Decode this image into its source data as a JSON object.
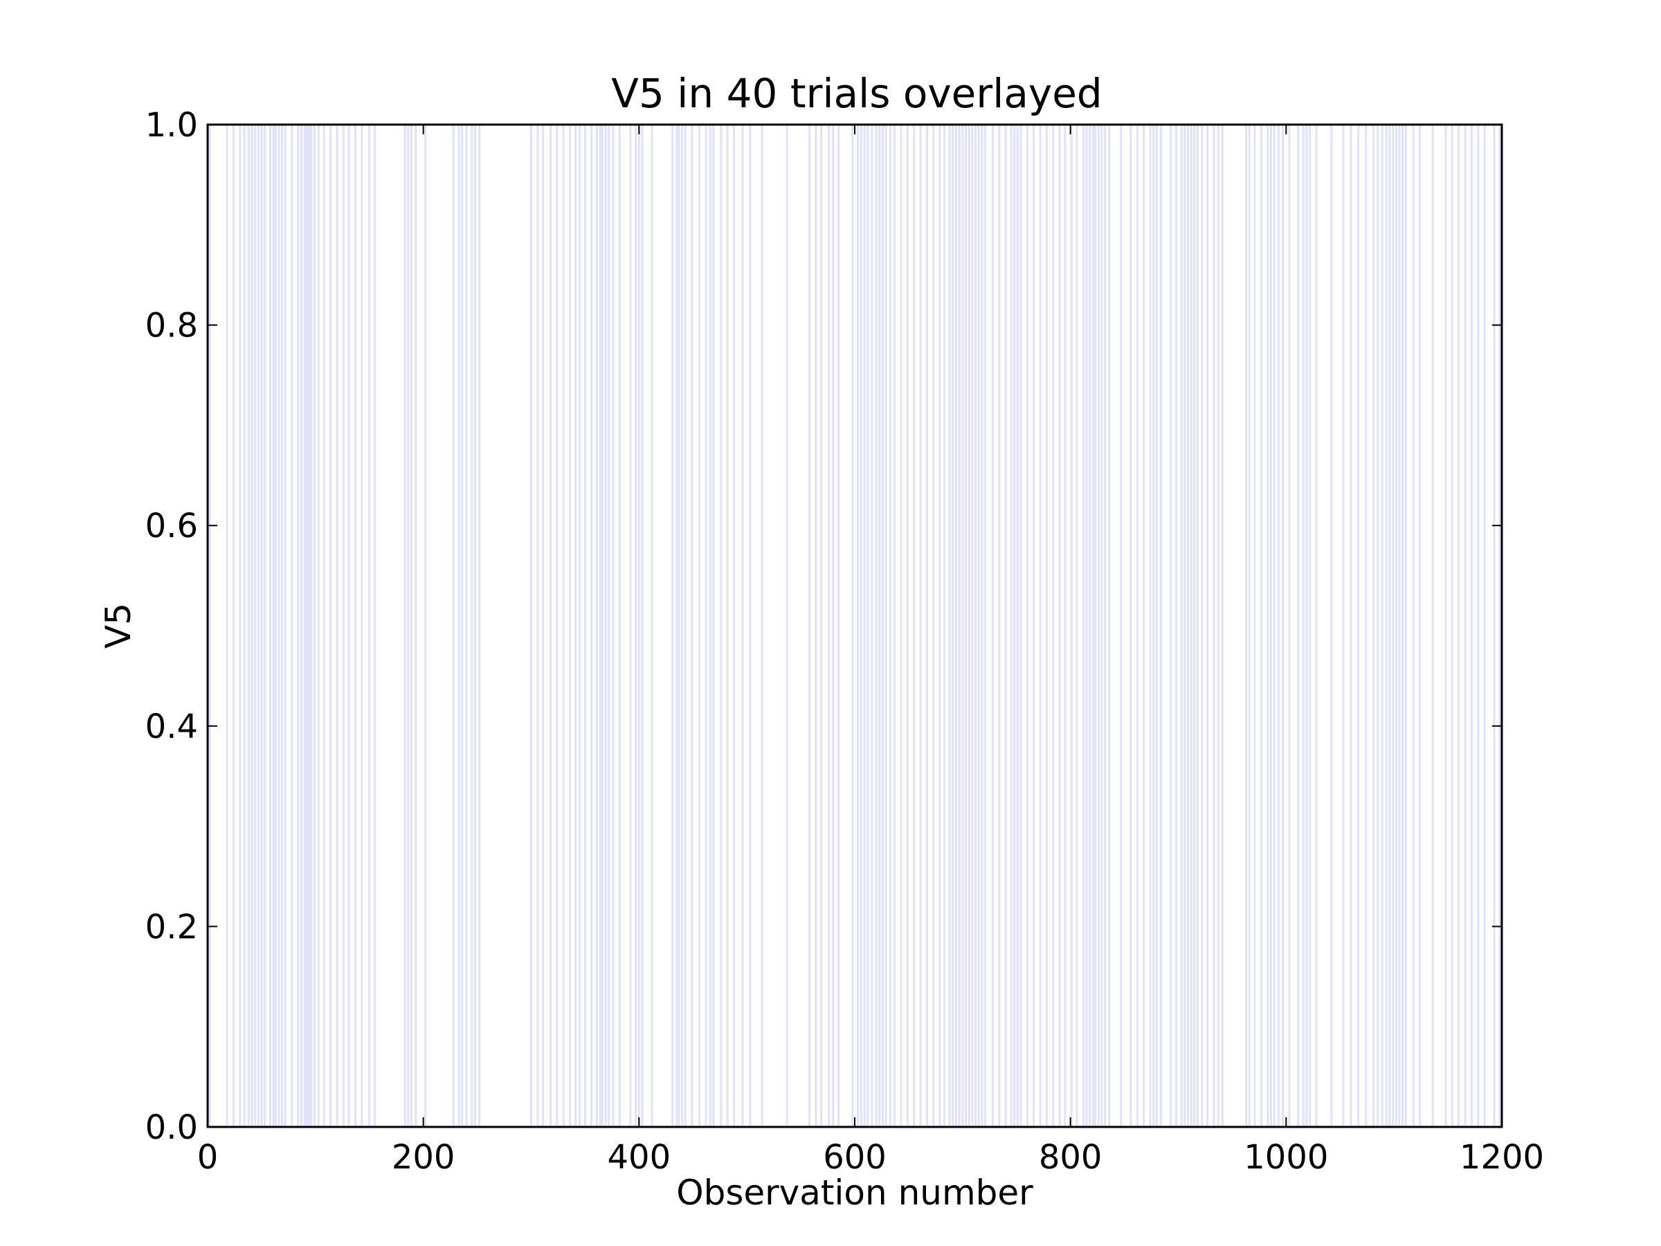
{
  "chart_data": {
    "type": "line",
    "title": "V5 in 40 trials overlayed",
    "xlabel": "Observation number",
    "ylabel": "V5",
    "xlim": [
      0,
      1200
    ],
    "ylim": [
      0.0,
      1.0
    ],
    "xticks": [
      0,
      200,
      400,
      600,
      800,
      1000,
      1200
    ],
    "xtick_labels": [
      "0",
      "200",
      "400",
      "600",
      "800",
      "1000",
      "1200"
    ],
    "yticks": [
      0.0,
      0.2,
      0.4,
      0.6,
      0.8,
      1.0
    ],
    "ytick_labels": [
      "0.0",
      "0.2",
      "0.4",
      "0.6",
      "0.8",
      "1.0"
    ],
    "grid": false,
    "series_color": "#0000ff",
    "line_opacity": 0.12,
    "trials": 40,
    "description_values": "Binary signal (0 or 1) overlaid across trials; vertical traces mark observation numbers where V5 switches to 1.",
    "transition_observations": [
      2,
      18,
      24,
      30,
      34,
      38,
      41,
      44,
      47,
      50,
      53,
      58,
      61,
      63,
      66,
      69,
      72,
      78,
      84,
      87,
      90,
      92,
      94,
      96,
      99,
      103,
      108,
      114,
      120,
      126,
      131,
      137,
      143,
      150,
      155,
      183,
      186,
      189,
      193,
      202,
      228,
      233,
      236,
      240,
      245,
      248,
      252,
      300,
      306,
      311,
      318,
      324,
      330,
      336,
      341,
      345,
      350,
      356,
      361,
      364,
      366,
      369,
      372,
      376,
      382,
      392,
      397,
      400,
      403,
      412,
      431,
      435,
      437,
      440,
      443,
      449,
      456,
      462,
      466,
      469,
      476,
      482,
      488,
      496,
      503,
      514,
      537,
      558,
      564,
      569,
      576,
      580,
      585,
      598,
      603,
      606,
      609,
      612,
      616,
      620,
      623,
      626,
      629,
      633,
      637,
      643,
      649,
      655,
      661,
      667,
      673,
      679,
      683,
      688,
      691,
      694,
      697,
      700,
      703,
      706,
      709,
      712,
      715,
      718,
      721,
      728,
      734,
      740,
      745,
      748,
      751,
      754,
      760,
      766,
      772,
      778,
      784,
      790,
      795,
      801,
      806,
      812,
      815,
      818,
      821,
      823,
      826,
      829,
      832,
      836,
      847,
      856,
      862,
      868,
      874,
      877,
      880,
      884,
      893,
      898,
      903,
      906,
      909,
      912,
      915,
      918,
      922,
      927,
      933,
      937,
      941,
      963,
      966,
      971,
      977,
      983,
      986,
      989,
      993,
      997,
      1003,
      1011,
      1016,
      1019,
      1022,
      1028,
      1042,
      1053,
      1060,
      1067,
      1074,
      1081,
      1085,
      1089,
      1093,
      1096,
      1099,
      1102,
      1105,
      1108,
      1111,
      1118,
      1124,
      1136,
      1148,
      1154,
      1160,
      1166,
      1172,
      1178,
      1184,
      1193,
      1198
    ]
  }
}
